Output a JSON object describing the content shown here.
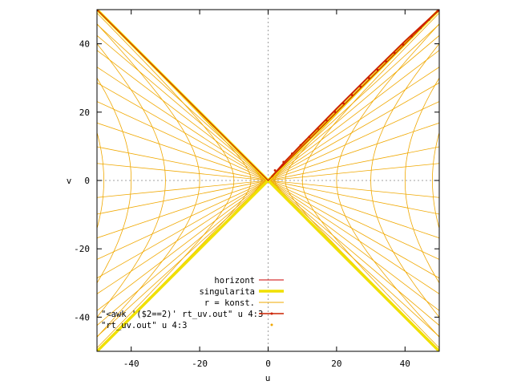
{
  "chart_data": {
    "type": "line",
    "title": "",
    "xlabel": "u",
    "ylabel": "v",
    "xlim": [
      -50,
      50
    ],
    "ylim": [
      -50,
      50
    ],
    "xticks": [
      -40,
      -20,
      0,
      20,
      40
    ],
    "yticks": [
      -40,
      -20,
      0,
      20,
      40
    ],
    "tick_labels_x": [
      "-40",
      "-20",
      "0",
      "20",
      "40"
    ],
    "tick_labels_y": [
      "-40",
      "-20",
      "0",
      "20",
      "40"
    ],
    "zero_axes": "dashed gray",
    "legend_position": "bottom-left",
    "series": [
      {
        "name": "horizont",
        "color": "#cc0000",
        "style": "line",
        "points": [
          [
            -50,
            50
          ],
          [
            0,
            0
          ],
          [
            50,
            50
          ]
        ]
      },
      {
        "name": "singularita",
        "color": "#f0e000",
        "style": "thick-line",
        "points": [
          [
            -50,
            50
          ],
          [
            0,
            0
          ],
          [
            50,
            -50
          ],
          [
            -50,
            -50
          ],
          [
            0,
            0
          ],
          [
            50,
            50
          ]
        ]
      },
      {
        "name": "r = konst.",
        "color": "#f0a800",
        "style": "hyperbolae",
        "constants": [
          0.5,
          2,
          5,
          10,
          20,
          30,
          40,
          48
        ]
      },
      {
        "name": "\"<awk '($2==2)' rt_uv.out\" u 4:3",
        "color": "#cc2200",
        "style": "linespoints",
        "points": [
          [
            1,
            1
          ],
          [
            5,
            5.6
          ],
          [
            10,
            10.8
          ],
          [
            20,
            21
          ],
          [
            30,
            31
          ],
          [
            40,
            40.8
          ],
          [
            50,
            50
          ]
        ]
      },
      {
        "name": "\"rt_uv.out\"             u 4:3",
        "color": "#f0a800",
        "style": "points",
        "t_lines": [
          0.1,
          0.2,
          0.35,
          0.5,
          0.65,
          0.8,
          1.0,
          1.25,
          1.55
        ]
      }
    ]
  }
}
